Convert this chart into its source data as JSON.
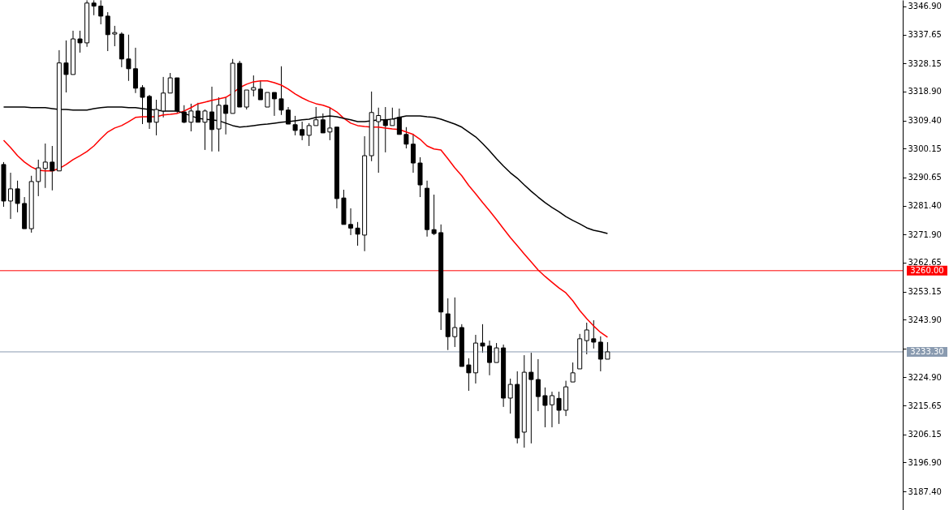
{
  "chart_data": {
    "type": "candlestick",
    "categories": [
      null,
      null,
      null,
      null,
      null,
      null,
      null,
      null,
      null,
      null,
      null,
      null,
      null,
      null,
      null,
      null,
      null,
      null,
      null,
      null,
      null,
      null,
      null,
      null,
      null,
      null,
      null,
      null,
      null,
      null,
      null,
      null,
      null,
      null,
      null,
      null,
      null,
      null,
      null,
      null,
      null,
      null,
      null,
      null,
      null,
      null,
      null,
      null,
      null,
      null,
      null,
      null,
      null,
      null,
      null,
      null,
      null,
      null,
      null,
      null,
      null,
      null,
      null,
      null,
      null,
      null,
      null,
      null,
      null,
      null,
      null,
      null,
      null,
      null,
      null,
      null,
      null,
      null,
      null,
      null,
      null,
      null,
      null,
      null,
      null,
      null,
      null,
      null,
      null,
      null,
      null,
      null,
      null,
      null,
      null,
      null,
      null,
      null,
      null,
      null,
      null,
      null,
      null,
      null,
      null,
      null,
      null,
      null,
      null,
      null,
      null,
      null,
      null,
      null,
      null,
      null,
      null,
      null,
      null,
      null,
      null,
      null,
      null,
      null,
      null,
      null,
      null,
      null,
      null,
      null
    ],
    "ohlc": [
      [
        3294.9,
        3295.7,
        3281.0,
        3282.9
      ],
      [
        3282.9,
        3292.2,
        3277.0,
        3286.9
      ],
      [
        3286.9,
        3289.6,
        3279.2,
        3282.1
      ],
      [
        3282.1,
        3284.2,
        3273.8,
        3273.8
      ],
      [
        3273.8,
        3291.2,
        3272.5,
        3289.3
      ],
      [
        3289.3,
        3296.5,
        3284.5,
        3293.8
      ],
      [
        3293.6,
        3301.8,
        3287.2,
        3295.7
      ],
      [
        3295.7,
        3301.0,
        3286.4,
        3292.8
      ],
      [
        3292.8,
        3332.5,
        3292.8,
        3328.3
      ],
      [
        3328.3,
        3335.7,
        3318.6,
        3324.5
      ],
      [
        3324.5,
        3338.9,
        3324.5,
        3336.2
      ],
      [
        3336.2,
        3338.9,
        3331.7,
        3334.9
      ],
      [
        3334.9,
        3348.9,
        3333.6,
        3348.0
      ],
      [
        3348.0,
        3348.9,
        3344.0,
        3347.0
      ],
      [
        3347.0,
        3348.9,
        3341.0,
        3343.7
      ],
      [
        3343.7,
        3345.0,
        3332.2,
        3337.6
      ],
      [
        3337.8,
        3340.5,
        3333.8,
        3338.3
      ],
      [
        3337.8,
        3338.4,
        3326.9,
        3329.6
      ],
      [
        3329.6,
        3337.6,
        3322.4,
        3326.4
      ],
      [
        3326.4,
        3333.3,
        3318.4,
        3320.0
      ],
      [
        3320.2,
        3321.0,
        3308.2,
        3317.0
      ],
      [
        3317.3,
        3317.8,
        3306.6,
        3308.8
      ],
      [
        3308.8,
        3316.2,
        3304.5,
        3313.0
      ],
      [
        3312.5,
        3323.7,
        3310.4,
        3318.4
      ],
      [
        3318.4,
        3325.0,
        3318.4,
        3323.4
      ],
      [
        3323.4,
        3323.4,
        3311.7,
        3312.5
      ],
      [
        3312.2,
        3314.4,
        3308.5,
        3308.8
      ],
      [
        3308.8,
        3314.9,
        3305.8,
        3312.5
      ],
      [
        3312.5,
        3315.2,
        3308.8,
        3308.8
      ],
      [
        3308.8,
        3313.0,
        3299.7,
        3312.5
      ],
      [
        3312.2,
        3320.5,
        3299.2,
        3306.4
      ],
      [
        3306.6,
        3317.0,
        3299.2,
        3314.4
      ],
      [
        3314.4,
        3317.0,
        3304.8,
        3311.7
      ],
      [
        3311.7,
        3329.6,
        3311.7,
        3328.2
      ],
      [
        3328.2,
        3329.0,
        3313.8,
        3313.8
      ],
      [
        3313.8,
        3319.4,
        3313.0,
        3319.4
      ],
      [
        3319.4,
        3324.2,
        3317.3,
        3320.2
      ],
      [
        3319.7,
        3322.6,
        3316.2,
        3316.2
      ],
      [
        3313.8,
        3318.6,
        3313.8,
        3318.6
      ],
      [
        3318.6,
        3318.6,
        3310.9,
        3316.5
      ],
      [
        3316.5,
        3327.2,
        3311.2,
        3312.8
      ],
      [
        3312.8,
        3313.8,
        3308.2,
        3308.2
      ],
      [
        3308.0,
        3310.9,
        3304.5,
        3306.1
      ],
      [
        3306.4,
        3309.0,
        3302.9,
        3304.5
      ],
      [
        3304.5,
        3308.5,
        3301.0,
        3307.7
      ],
      [
        3307.7,
        3313.8,
        3307.7,
        3309.6
      ],
      [
        3309.6,
        3311.7,
        3305.3,
        3305.3
      ],
      [
        3305.6,
        3313.8,
        3302.9,
        3306.9
      ],
      [
        3307.2,
        3307.2,
        3280.5,
        3283.7
      ],
      [
        3283.9,
        3286.6,
        3275.2,
        3275.2
      ],
      [
        3275.2,
        3280.5,
        3271.7,
        3274.0
      ],
      [
        3274.0,
        3276.0,
        3268.2,
        3272.0
      ],
      [
        3271.7,
        3304.2,
        3266.4,
        3297.8
      ],
      [
        3297.8,
        3318.9,
        3296.0,
        3312.0
      ],
      [
        3309.0,
        3313.6,
        3292.2,
        3311.0
      ],
      [
        3309.6,
        3313.8,
        3298.9,
        3307.7
      ],
      [
        3307.7,
        3313.6,
        3307.7,
        3309.8
      ],
      [
        3310.4,
        3313.3,
        3304.8,
        3304.8
      ],
      [
        3304.8,
        3307.2,
        3300.2,
        3301.6
      ],
      [
        3301.6,
        3305.0,
        3292.2,
        3295.4
      ],
      [
        3295.4,
        3297.3,
        3284.2,
        3288.2
      ],
      [
        3287.1,
        3289.6,
        3271.2,
        3273.5
      ],
      [
        3273.5,
        3285.0,
        3271.7,
        3272.2
      ],
      [
        3272.5,
        3275.2,
        3240.5,
        3246.4
      ],
      [
        3245.8,
        3250.9,
        3233.9,
        3238.3
      ],
      [
        3238.3,
        3251.2,
        3234.9,
        3241.3
      ],
      [
        3241.3,
        3242.4,
        3228.5,
        3228.5
      ],
      [
        3229.0,
        3231.2,
        3220.5,
        3226.4
      ],
      [
        3226.4,
        3238.9,
        3222.9,
        3236.2
      ],
      [
        3236.2,
        3242.4,
        3233.0,
        3235.2
      ],
      [
        3235.2,
        3237.0,
        3225.6,
        3229.8
      ],
      [
        3229.8,
        3236.2,
        3229.8,
        3234.6
      ],
      [
        3234.6,
        3235.7,
        3215.2,
        3218.1
      ],
      [
        3218.1,
        3224.5,
        3213.0,
        3222.6
      ],
      [
        3222.6,
        3226.9,
        3203.2,
        3205.0
      ],
      [
        3206.9,
        3232.2,
        3201.8,
        3226.6
      ],
      [
        3226.6,
        3233.0,
        3203.2,
        3224.2
      ],
      [
        3224.2,
        3230.9,
        3213.8,
        3218.6
      ],
      [
        3218.9,
        3221.6,
        3208.5,
        3215.7
      ],
      [
        3215.9,
        3220.2,
        3208.5,
        3218.9
      ],
      [
        3218.0,
        3220.2,
        3209.6,
        3214.1
      ],
      [
        3214.1,
        3223.8,
        3212.2,
        3221.8
      ],
      [
        3223.4,
        3229.8,
        3223.4,
        3226.4
      ],
      [
        3227.7,
        3239.2,
        3227.7,
        3237.6
      ],
      [
        3237.0,
        3242.9,
        3232.5,
        3240.5
      ],
      [
        3237.6,
        3243.7,
        3234.4,
        3236.5
      ],
      [
        3236.5,
        3238.4,
        3226.9,
        3230.9
      ],
      [
        3230.9,
        3236.5,
        3230.9,
        3233.3
      ],
      null,
      null,
      null,
      null,
      null,
      null,
      null,
      null,
      null,
      null,
      null,
      null,
      null,
      null,
      null,
      null,
      null,
      null,
      null,
      null,
      null,
      null,
      null,
      null,
      null,
      null,
      null,
      null,
      null,
      null,
      null,
      null,
      null,
      null,
      null,
      null,
      null,
      null,
      null,
      null,
      null,
      null
    ],
    "series": [
      {
        "type": "line",
        "color": "#ff0000",
        "values": [
          3302.9,
          3300.5,
          3297.8,
          3295.7,
          3294.1,
          3293.0,
          3292.8,
          3292.8,
          3293.6,
          3294.9,
          3296.5,
          3297.8,
          3299.2,
          3301.0,
          3303.4,
          3305.6,
          3306.9,
          3307.7,
          3309.0,
          3310.4,
          3310.6,
          3310.6,
          3310.6,
          3311.2,
          3311.4,
          3311.7,
          3312.5,
          3313.6,
          3314.9,
          3315.4,
          3316.0,
          3316.5,
          3317.0,
          3318.4,
          3320.2,
          3321.3,
          3322.1,
          3322.4,
          3322.4,
          3321.8,
          3321.0,
          3319.7,
          3318.1,
          3316.8,
          3315.7,
          3314.9,
          3314.4,
          3313.6,
          3312.2,
          3310.1,
          3308.5,
          3307.7,
          3307.4,
          3307.2,
          3307.2,
          3306.9,
          3306.6,
          3306.4,
          3305.6,
          3304.8,
          3303.2,
          3301.0,
          3300.0,
          3299.7,
          3296.8,
          3293.8,
          3291.2,
          3288.0,
          3285.3,
          3282.4,
          3279.7,
          3276.8,
          3273.8,
          3270.9,
          3268.2,
          3265.5,
          3262.9,
          3260.2,
          3258.1,
          3256.2,
          3254.3,
          3252.7,
          3250.1,
          3246.9,
          3244.2,
          3241.8,
          3239.7,
          3238.1,
          null,
          null,
          null,
          null,
          null,
          null,
          null,
          null,
          null,
          null,
          null,
          null,
          null,
          null,
          null,
          null,
          null,
          null,
          null,
          null,
          null,
          null,
          null,
          null,
          null,
          null,
          null,
          null,
          null,
          null,
          null,
          null,
          null,
          null,
          null,
          null,
          null,
          null,
          null,
          null,
          null,
          null
        ]
      },
      {
        "type": "line",
        "color": "#000000",
        "values": [
          3313.8,
          3313.8,
          3313.8,
          3313.8,
          3313.6,
          3313.6,
          3313.6,
          3313.3,
          3313.0,
          3313.0,
          3312.8,
          3312.8,
          3312.8,
          3313.3,
          3313.6,
          3313.8,
          3313.8,
          3313.8,
          3313.6,
          3313.6,
          3313.3,
          3313.0,
          3312.8,
          3312.5,
          3312.5,
          3312.5,
          3311.7,
          3310.9,
          3310.1,
          3309.8,
          3309.6,
          3309.3,
          3308.5,
          3307.7,
          3307.2,
          3307.4,
          3307.7,
          3308.0,
          3308.2,
          3308.5,
          3308.8,
          3309.0,
          3309.3,
          3309.6,
          3309.8,
          3310.4,
          3310.6,
          3310.9,
          3310.6,
          3310.1,
          3309.6,
          3309.0,
          3309.0,
          3309.3,
          3309.6,
          3309.6,
          3309.8,
          3310.4,
          3310.9,
          3310.9,
          3310.9,
          3310.6,
          3310.4,
          3309.8,
          3309.0,
          3308.2,
          3307.2,
          3305.6,
          3304.0,
          3301.8,
          3299.4,
          3296.8,
          3294.4,
          3292.2,
          3290.4,
          3288.2,
          3286.1,
          3284.2,
          3282.4,
          3280.8,
          3279.4,
          3277.8,
          3276.5,
          3275.4,
          3274.1,
          3273.3,
          3272.8,
          3272.2,
          null,
          null,
          null,
          null,
          null,
          null,
          null,
          null,
          null,
          null,
          null,
          null,
          null,
          null,
          null,
          null,
          null,
          null,
          null,
          null,
          null,
          null,
          null,
          null,
          null,
          null,
          null,
          null,
          null,
          null,
          null,
          null,
          null,
          null,
          null,
          null,
          null,
          null,
          null,
          null,
          null,
          null
        ]
      }
    ],
    "ylim": [
      3181.3,
      3349.0
    ],
    "yticks": [
      {
        "value": 3346.9,
        "label": "3346.90"
      },
      {
        "value": 3337.65,
        "label": "3337.65"
      },
      {
        "value": 3328.15,
        "label": "3328.15"
      },
      {
        "value": 3318.9,
        "label": "3318.90"
      },
      {
        "value": 3309.4,
        "label": "3309.40"
      },
      {
        "value": 3300.15,
        "label": "3300.15"
      },
      {
        "value": 3290.65,
        "label": "3290.65"
      },
      {
        "value": 3281.4,
        "label": "3281.40"
      },
      {
        "value": 3271.9,
        "label": "3271.90"
      },
      {
        "value": 3262.65,
        "label": "3262.65"
      },
      {
        "value": 3253.15,
        "label": "3253.15"
      },
      {
        "value": 3243.9,
        "label": "3243.90"
      },
      {
        "value": 3234.4,
        "label": null
      },
      {
        "value": 3224.9,
        "label": "3224.90"
      },
      {
        "value": 3215.65,
        "label": "3215.65"
      },
      {
        "value": 3206.15,
        "label": "3206.15"
      },
      {
        "value": 3196.9,
        "label": "3196.90"
      },
      {
        "value": 3187.4,
        "label": "3187.40"
      }
    ],
    "ref_lines": [
      {
        "axis": "y",
        "value": 3260.0,
        "label": "3260.00",
        "color": "#ff0000"
      },
      {
        "axis": "y",
        "value": 3233.3,
        "label": "3233.30",
        "color": "#8a9bb0"
      }
    ],
    "tick_labels": "y"
  }
}
